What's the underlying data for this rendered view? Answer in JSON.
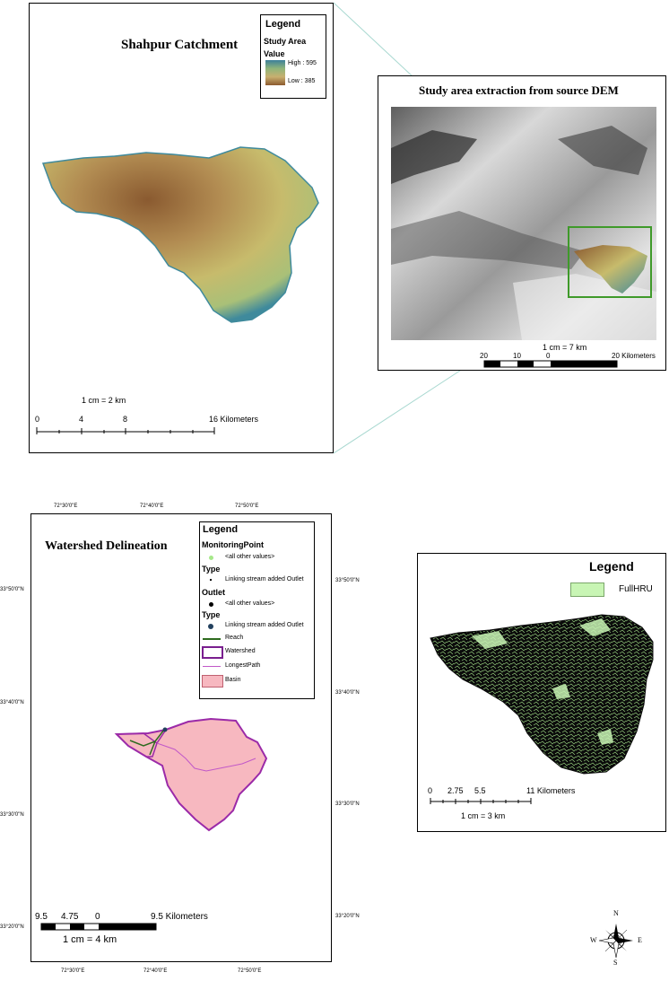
{
  "panel_top_left": {
    "title": "Shahpur Catchment",
    "legend": {
      "heading": "Legend",
      "layer": "Study Area",
      "field": "Value",
      "high": "High : 595",
      "low": "Low : 385"
    },
    "scale_text": "1 cm = 2 km",
    "scale_ticks": [
      "0",
      "4",
      "8",
      "16 Kilometers"
    ]
  },
  "panel_top_right": {
    "title": "Study area extraction from source DEM",
    "scale_text": "1 cm = 7 km",
    "scale_ticks": [
      "20",
      "10",
      "0",
      "20 Kilometers"
    ]
  },
  "panel_bottom_left": {
    "title": "Watershed Delineation",
    "top_lon_labels": [
      "72°30'0\"E",
      "72°40'0\"E",
      "72°50'0\"E"
    ],
    "bottom_lon_labels": [
      "72°30'0\"E",
      "72°40'0\"E",
      "72°50'0\"E"
    ],
    "left_lat_labels": [
      "33°50'0\"N",
      "33°40'0\"N",
      "33°30'0\"N",
      "33°20'0\"N"
    ],
    "right_lat_labels": [
      "33°50'0\"N",
      "33°40'0\"N",
      "33°30'0\"N",
      "33°20'0\"N"
    ],
    "legend": {
      "heading": "Legend",
      "monitoring_point": "MonitoringPoint",
      "mp_all": "<all other values>",
      "mp_type": "Type",
      "mp_linking": "Linking stream added Outlet",
      "outlet": "Outlet",
      "outlet_all": "<all other values>",
      "outlet_type": "Type",
      "outlet_linking": "Linking stream added Outlet",
      "reach": "Reach",
      "watershed": "Watershed",
      "longest_path": "LongestPath",
      "basin": "Basin"
    },
    "scale_ticks": [
      "9.5",
      "4.75",
      "0",
      "9.5 Kilometers"
    ],
    "scale_text": "1 cm = 4 km"
  },
  "panel_bottom_right": {
    "legend": {
      "heading": "Legend",
      "item": "FullHRU"
    },
    "scale_ticks": [
      "0",
      "2.75",
      "5.5",
      "11 Kilometers"
    ],
    "scale_text": "1 cm = 3 km"
  },
  "compass": {
    "n": "N",
    "s": "S",
    "e": "E",
    "w": "W"
  },
  "colors": {
    "hru_fill": "#c8f5b4",
    "basin_fill": "#f7b8c0",
    "watershed_outline": "#9b2aa8",
    "reach": "#2e6b1f",
    "inset_box": "#3f9a2a",
    "leader_line": "#a8d8d0"
  }
}
